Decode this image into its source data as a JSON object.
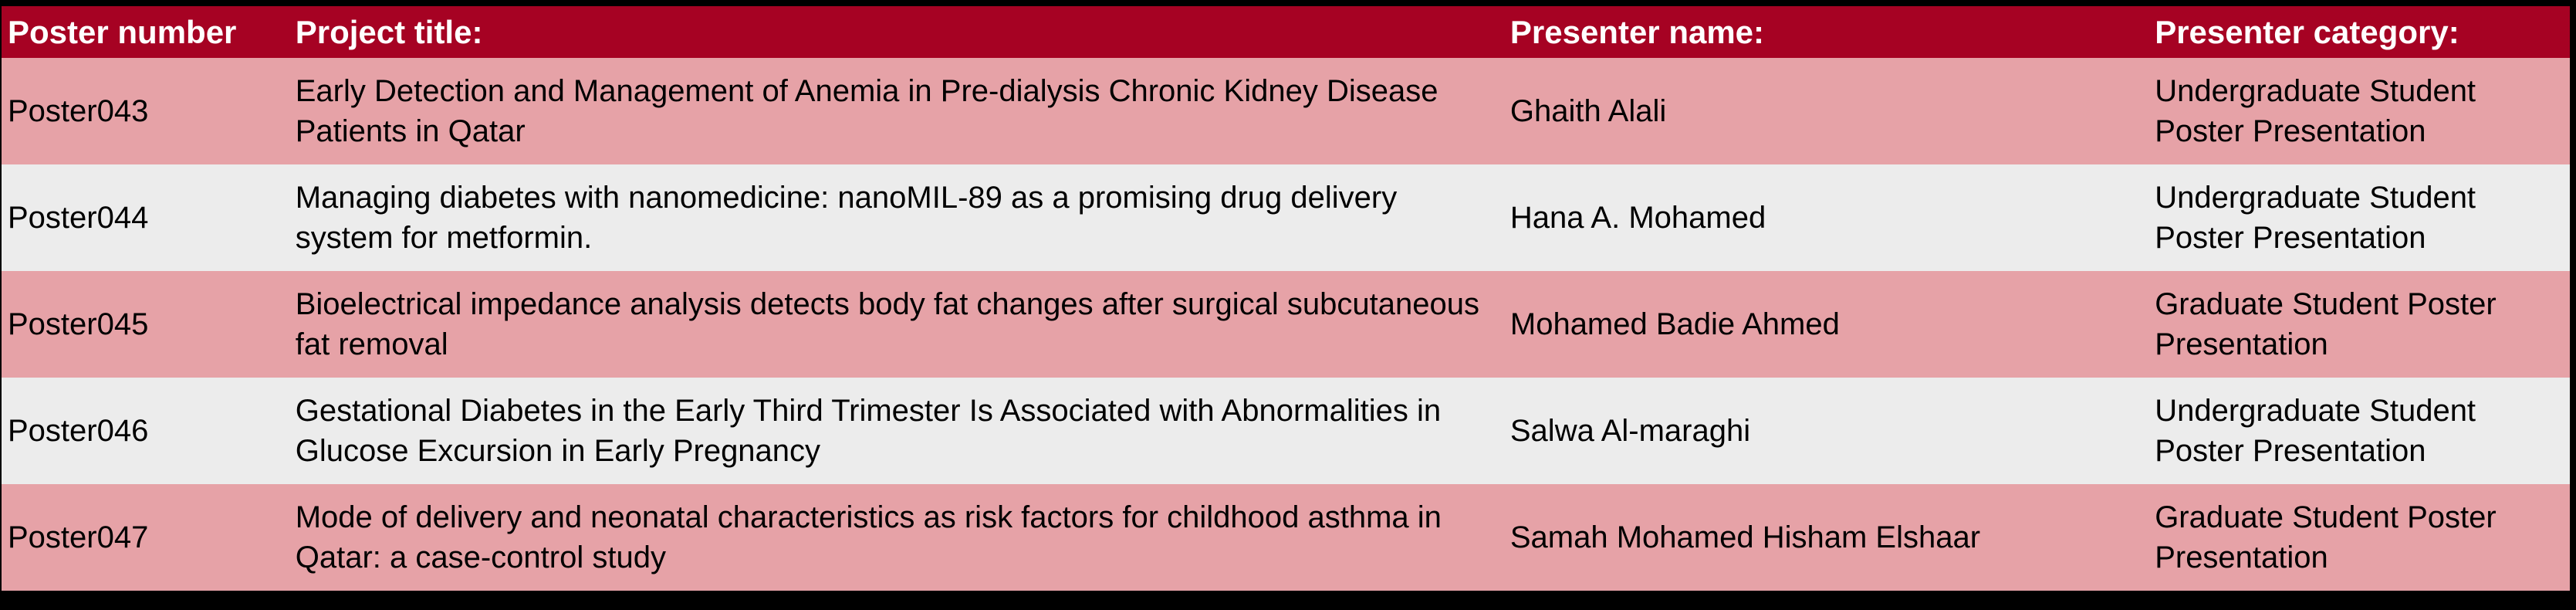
{
  "colors": {
    "frame_bg": "#000000",
    "header_bg": "#A60223",
    "header_text": "#FFFFFF",
    "body_text": "#000000",
    "row_pink": "#E6A2A7",
    "row_gray": "#ECECEC"
  },
  "table": {
    "headers": {
      "poster_number": "Poster number",
      "project_title": "Project title:",
      "presenter_name": "Presenter name:",
      "presenter_category": "Presenter category:"
    },
    "rows": [
      {
        "poster": "Poster043",
        "title": "Early Detection and Management of Anemia in Pre-dialysis Chronic Kidney Disease Patients in Qatar",
        "presenter": "Ghaith Alali",
        "category": "Undergraduate Student Poster Presentation"
      },
      {
        "poster": "Poster044",
        "title": "Managing diabetes with nanomedicine: nanoMIL-89 as a promising drug delivery system for metformin.",
        "presenter": "Hana A. Mohamed",
        "category": "Undergraduate Student Poster Presentation"
      },
      {
        "poster": "Poster045",
        "title": "Bioelectrical impedance analysis detects body fat changes after surgical subcutaneous fat removal",
        "presenter": "Mohamed Badie Ahmed",
        "category": "Graduate Student Poster Presentation"
      },
      {
        "poster": "Poster046",
        "title": "Gestational Diabetes in the Early Third Trimester Is Associated with Abnormalities in Glucose Excursion in Early Pregnancy",
        "presenter": "Salwa Al-maraghi",
        "category": "Undergraduate Student Poster Presentation"
      },
      {
        "poster": "Poster047",
        "title": "Mode of delivery and neonatal characteristics as risk factors for childhood asthma in Qatar: a case-control study",
        "presenter": "Samah Mohamed Hisham Elshaar",
        "category": "Graduate Student Poster Presentation"
      }
    ]
  }
}
